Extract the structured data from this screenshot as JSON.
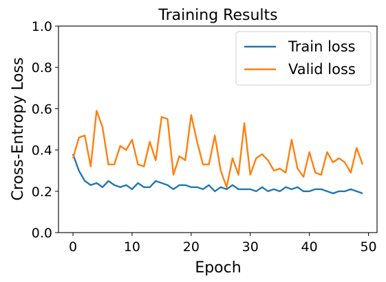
{
  "chart_data": {
    "type": "line",
    "title": "Training Results",
    "xlabel": "Epoch",
    "ylabel": "Cross-Entropy Loss",
    "xlim": [
      -2.45,
      51.45
    ],
    "ylim": [
      0.0,
      1.0
    ],
    "xticks": [
      0,
      10,
      20,
      30,
      40,
      50
    ],
    "yticks": [
      0.0,
      0.2,
      0.4,
      0.6,
      0.8,
      1.0
    ],
    "xtick_labels": [
      "0",
      "10",
      "20",
      "30",
      "40",
      "50"
    ],
    "ytick_labels": [
      "0.0",
      "0.2",
      "0.4",
      "0.6",
      "0.8",
      "1.0"
    ],
    "grid": false,
    "legend_position": "top-right",
    "x": [
      0,
      1,
      2,
      3,
      4,
      5,
      6,
      7,
      8,
      9,
      10,
      11,
      12,
      13,
      14,
      15,
      16,
      17,
      18,
      19,
      20,
      21,
      22,
      23,
      24,
      25,
      26,
      27,
      28,
      29,
      30,
      31,
      32,
      33,
      34,
      35,
      36,
      37,
      38,
      39,
      40,
      41,
      42,
      43,
      44,
      45,
      46,
      47,
      48,
      49
    ],
    "series": [
      {
        "name": "Train loss",
        "color": "#1f77b4",
        "values": [
          0.38,
          0.3,
          0.25,
          0.23,
          0.24,
          0.22,
          0.25,
          0.23,
          0.22,
          0.23,
          0.21,
          0.24,
          0.22,
          0.22,
          0.25,
          0.24,
          0.23,
          0.21,
          0.23,
          0.23,
          0.22,
          0.22,
          0.21,
          0.23,
          0.2,
          0.22,
          0.21,
          0.23,
          0.21,
          0.21,
          0.21,
          0.2,
          0.22,
          0.2,
          0.21,
          0.2,
          0.22,
          0.21,
          0.22,
          0.2,
          0.2,
          0.21,
          0.21,
          0.2,
          0.19,
          0.2,
          0.2,
          0.21,
          0.2,
          0.19
        ]
      },
      {
        "name": "Valid loss",
        "color": "#ff7f0e",
        "values": [
          0.36,
          0.46,
          0.47,
          0.32,
          0.59,
          0.51,
          0.33,
          0.33,
          0.42,
          0.4,
          0.45,
          0.33,
          0.32,
          0.44,
          0.35,
          0.56,
          0.55,
          0.28,
          0.37,
          0.35,
          0.57,
          0.44,
          0.33,
          0.33,
          0.47,
          0.3,
          0.22,
          0.36,
          0.28,
          0.53,
          0.28,
          0.36,
          0.38,
          0.35,
          0.3,
          0.31,
          0.29,
          0.45,
          0.31,
          0.27,
          0.39,
          0.29,
          0.28,
          0.39,
          0.34,
          0.36,
          0.34,
          0.29,
          0.41,
          0.33
        ]
      }
    ]
  }
}
